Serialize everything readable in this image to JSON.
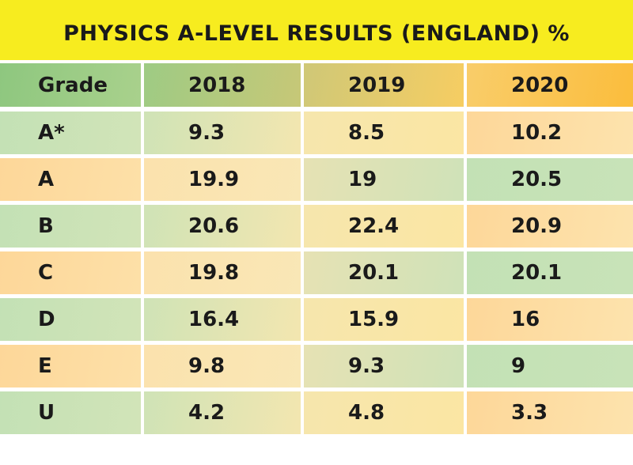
{
  "chart_data": {
    "type": "table",
    "title": "PHYSICS A-LEVEL RESULTS (ENGLAND) %",
    "columns": [
      "Grade",
      "2018",
      "2019",
      "2020"
    ],
    "rows": [
      [
        "A*",
        "9.3",
        "8.5",
        "10.2"
      ],
      [
        "A",
        "19.9",
        "19",
        "20.5"
      ],
      [
        "B",
        "20.6",
        "22.4",
        "20.9"
      ],
      [
        "C",
        "19.8",
        "20.1",
        "20.1"
      ],
      [
        "D",
        "16.4",
        "15.9",
        "16"
      ],
      [
        "E",
        "9.8",
        "9.3",
        "9"
      ],
      [
        "U",
        "4.2",
        "4.8",
        "3.3"
      ]
    ]
  },
  "colors": {
    "title_bg": "#f7ec1f",
    "green": "#c3e1b5",
    "orange": "#fdd799",
    "cream": "#fbe6a3",
    "header_green": "#8ec77f",
    "header_orange": "#fbbd3c"
  }
}
